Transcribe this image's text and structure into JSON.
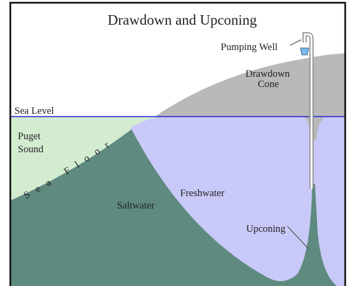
{
  "title": "Drawdown and Upconing",
  "labels": {
    "pumping_well": "Pumping Well",
    "drawdown_cone": [
      "Drawdown",
      "Cone"
    ],
    "sea_level": "Sea Level",
    "puget_sound": [
      "Puget",
      "Sound"
    ],
    "sea_floor": "Sea Floor",
    "saltwater": "Saltwater",
    "freshwater": "Freshwater",
    "upconing": "Upconing"
  }
}
